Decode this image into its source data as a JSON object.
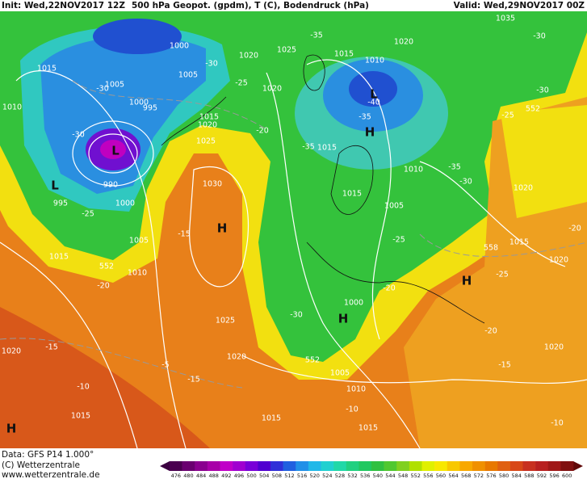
{
  "header": {
    "init": "Init: Wed,22NOV2017 12Z",
    "field": "500 hPa Geopot. (gpdm), T (C), Bodendruck (hPa)",
    "valid": "Valid: Wed,29NOV2017 00Z"
  },
  "footer": {
    "data": "Data: GFS P14 1.000°",
    "copyright": "(C) Wetterzentrale",
    "url": "www.wetterzentrale.de"
  },
  "colorbar": {
    "values": [
      476,
      480,
      484,
      488,
      492,
      496,
      500,
      504,
      508,
      512,
      516,
      520,
      524,
      528,
      532,
      536,
      540,
      544,
      548,
      552,
      556,
      560,
      564,
      568,
      572,
      576,
      580,
      584,
      588,
      592,
      596,
      600
    ],
    "colors": [
      "#4a0050",
      "#6a0070",
      "#8a008f",
      "#a800a8",
      "#c000c8",
      "#a000d0",
      "#7800d8",
      "#5000d0",
      "#3030d8",
      "#2060e0",
      "#2090e8",
      "#20b8e8",
      "#20d0d0",
      "#20d8a8",
      "#20d080",
      "#20c860",
      "#30c040",
      "#50c830",
      "#80d020",
      "#b0e000",
      "#e0f000",
      "#f8e800",
      "#f8c800",
      "#f8a800",
      "#f09000",
      "#e87800",
      "#e06010",
      "#d84818",
      "#c83020",
      "#b82020",
      "#a01818",
      "#801010"
    ]
  },
  "map_labels": [
    "1015",
    "1010",
    "1005",
    "1000",
    "1005",
    "1000",
    "995",
    "995",
    "990",
    "1000",
    "1005",
    "1015",
    "1010",
    "1020",
    "1025",
    "1020",
    "1015",
    "1020",
    "1025",
    "1030",
    "1025",
    "1020",
    "1020",
    "1015",
    "1015",
    "1015",
    "1005",
    "1010",
    "1015",
    "1010",
    "1020",
    "1035",
    "1015",
    "1015",
    "1010",
    "1005",
    "1000",
    "1020",
    "1015",
    "1020",
    "1020",
    "-35",
    "-30",
    "-25",
    "-30",
    "-20",
    "-30",
    "-35",
    "-40",
    "-35",
    "-25",
    "-15",
    "-20",
    "-15",
    "-10",
    "-15",
    "-5",
    "-30",
    "-20",
    "-25",
    "-35",
    "-30",
    "-25",
    "-30",
    "-30",
    "-20",
    "-15",
    "-10",
    "-10",
    "-20",
    "-25",
    "L",
    "L",
    "H",
    "H",
    "H",
    "H",
    "H",
    "L",
    "552",
    "552",
    "552",
    "558"
  ]
}
